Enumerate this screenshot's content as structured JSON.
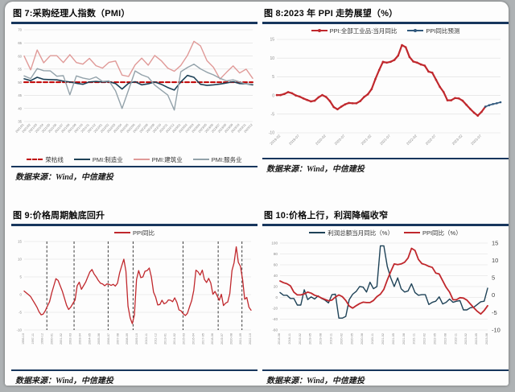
{
  "panels": [
    {
      "title": "图 7:采购经理人指数（PMI）",
      "source": "数据来源：Wind，中信建投"
    },
    {
      "title": "图 8:2023 年 PPI 走势展望（%）",
      "source": "数据来源：Wind，中信建投"
    },
    {
      "title": "图 9:价格周期触底回升",
      "source": "数据来源：Wind，中信建投"
    },
    {
      "title": "图 10:价格上行，利润降幅收窄",
      "source": "数据来源：Wind，中信建投"
    }
  ],
  "colors": {
    "rule_navy": "#17365d",
    "ppi_red": "#c0282d",
    "line_navy": "#1e4257",
    "construction_pink": "#e09a98",
    "services_gray": "#93a2aa",
    "forecast_blue": "#31597d",
    "grid": "#dddddd",
    "axis_text": "#8a8a8a"
  },
  "chart_data": [
    {
      "type": "line",
      "title": "图 7:采购经理人指数（PMI）",
      "xlabel": "",
      "ylabel": "",
      "ylim": [
        35,
        70
      ],
      "yticks": [
        70,
        65,
        60,
        55,
        50,
        45,
        40,
        35
      ],
      "y_font": 4.2,
      "x_font": 3.8,
      "x_rotate": -48,
      "grid": true,
      "legend_position": "bottom",
      "x_labels": [
        "2021/01",
        "2021/02",
        "2021/03",
        "2021/04",
        "2021/05",
        "2021/06",
        "2021/07",
        "2021/08",
        "2021/09",
        "2021/10",
        "2021/11",
        "2021/12",
        "2022/01",
        "2022/02",
        "2022/03",
        "2022/04",
        "2022/05",
        "2022/06",
        "2022/07",
        "2022/08",
        "2022/09",
        "2022/10",
        "2022/11",
        "2022/12",
        "2023/01",
        "2023/02",
        "2023/03",
        "2023/04",
        "2023/05",
        "2023/06",
        "2023/07",
        "2023/08",
        "2023/09",
        "2023/10",
        "2023/11",
        "2023/12"
      ],
      "series": [
        {
          "name": "荣枯线",
          "color": "#c00000",
          "width": 2,
          "dash": "5 3",
          "values": [
            50,
            50,
            50,
            50,
            50,
            50,
            50,
            50,
            50,
            50,
            50,
            50,
            50,
            50,
            50,
            50,
            50,
            50,
            50,
            50,
            50,
            50,
            50,
            50,
            50,
            50,
            50,
            50,
            50,
            50,
            50,
            50,
            50,
            50,
            50,
            50
          ]
        },
        {
          "name": "PMI:制造业",
          "color": "#1e4257",
          "width": 1.6,
          "values": [
            51.3,
            50.6,
            51.9,
            51.1,
            51.0,
            50.9,
            50.4,
            50.1,
            49.6,
            49.2,
            50.1,
            50.3,
            50.1,
            50.2,
            49.5,
            47.4,
            49.6,
            50.2,
            49.0,
            49.4,
            50.1,
            49.2,
            48.0,
            47.0,
            50.1,
            52.6,
            51.9,
            49.2,
            48.8,
            49.0,
            49.3,
            49.7,
            50.2,
            49.5,
            49.4,
            49.0
          ]
        },
        {
          "name": "PMI:建筑业",
          "color": "#e09a98",
          "width": 1.4,
          "values": [
            60.0,
            54.7,
            62.3,
            57.4,
            60.1,
            60.1,
            57.5,
            60.5,
            57.5,
            56.9,
            59.1,
            56.3,
            55.4,
            57.6,
            58.1,
            52.7,
            52.2,
            56.6,
            59.2,
            56.5,
            60.2,
            58.2,
            55.4,
            54.2,
            56.4,
            60.2,
            65.6,
            63.9,
            58.2,
            55.7,
            51.2,
            53.8,
            56.2,
            53.5,
            55.0,
            51.5
          ]
        },
        {
          "name": "PMI:服务业",
          "color": "#93a2aa",
          "width": 1.4,
          "values": [
            52.4,
            51.4,
            55.2,
            54.4,
            54.3,
            52.3,
            52.5,
            45.2,
            52.4,
            51.6,
            51.1,
            52.0,
            50.3,
            50.5,
            46.7,
            40.0,
            47.1,
            54.3,
            52.8,
            51.9,
            48.9,
            47.0,
            45.1,
            39.4,
            54.0,
            55.6,
            56.9,
            55.1,
            53.8,
            52.8,
            51.5,
            50.5,
            50.9,
            50.1,
            49.3,
            49.3
          ]
        }
      ]
    },
    {
      "type": "line",
      "title": "图 8:2023 年 PPI 走势展望（%）",
      "xlabel": "",
      "ylabel": "",
      "ylim": [
        -10,
        15
      ],
      "yticks": [
        15,
        10,
        5,
        0,
        -5,
        -10
      ],
      "y_font": 5,
      "x_font": 4.4,
      "x_rotate": -45,
      "grid": true,
      "legend_position": "top",
      "x_count": 60,
      "x_ticks": [
        {
          "i": 1,
          "label": "2019-02"
        },
        {
          "i": 6,
          "label": "2019-07"
        },
        {
          "i": 13,
          "label": "2020-02"
        },
        {
          "i": 18,
          "label": "2020-07"
        },
        {
          "i": 25,
          "label": "2021-02"
        },
        {
          "i": 30,
          "label": "2021-07"
        },
        {
          "i": 37,
          "label": "2022-02"
        },
        {
          "i": 42,
          "label": "2022-07"
        },
        {
          "i": 49,
          "label": "2023-02"
        },
        {
          "i": 54,
          "label": "2023-07"
        }
      ],
      "series": [
        {
          "name": "PPI:全部工业品:当月同比",
          "color": "#c0282d",
          "width": 2.2,
          "markers": true,
          "values": [
            0.1,
            0.1,
            0.4,
            0.9,
            0.6,
            0.0,
            -0.3,
            -0.8,
            -1.2,
            -1.6,
            -1.4,
            -0.5,
            0.1,
            -0.4,
            -1.5,
            -3.1,
            -3.7,
            -3.0,
            -2.4,
            -2.0,
            -2.1,
            -2.1,
            -1.5,
            -0.4,
            0.3,
            1.7,
            4.4,
            6.8,
            9.0,
            8.8,
            9.0,
            9.5,
            10.7,
            13.5,
            12.9,
            10.3,
            9.1,
            8.8,
            8.3,
            8.0,
            6.4,
            6.1,
            4.2,
            2.3,
            0.9,
            -1.3,
            -1.3,
            -0.7,
            -0.8,
            -1.4,
            -2.5,
            -3.6,
            -4.6,
            -5.4,
            -4.4,
            -3.0
          ]
        },
        {
          "name": "PPI同比预测",
          "color": "#31597d",
          "width": 1.6,
          "markers": true,
          "start": 55,
          "values": [
            -3.0,
            -2.6,
            -2.3,
            -2.1,
            -1.8
          ]
        }
      ]
    },
    {
      "type": "line",
      "title": "图 9:价格周期触底回升",
      "xlabel": "",
      "ylabel": "",
      "ylim": [
        -10,
        15
      ],
      "yticks": [
        15,
        10,
        5,
        0,
        -5,
        -10
      ],
      "y_font": 4.4,
      "x_font": 3.8,
      "x_rotate": -90,
      "grid": true,
      "legend_position": "top",
      "x_count": 108,
      "vlines": [
        0.1,
        0.22,
        0.37,
        0.48,
        0.7,
        0.855,
        0.96
      ],
      "x_ticks": [
        {
          "f": 0.0,
          "label": "1996-10"
        },
        {
          "f": 0.042,
          "label": "1997-11"
        },
        {
          "f": 0.083,
          "label": "1998-12"
        },
        {
          "f": 0.125,
          "label": "2000-01"
        },
        {
          "f": 0.167,
          "label": "2001-02"
        },
        {
          "f": 0.208,
          "label": "2002-03"
        },
        {
          "f": 0.25,
          "label": "2003-04"
        },
        {
          "f": 0.292,
          "label": "2004-05"
        },
        {
          "f": 0.333,
          "label": "2005-06"
        },
        {
          "f": 0.375,
          "label": "2006-07"
        },
        {
          "f": 0.417,
          "label": "2007-08"
        },
        {
          "f": 0.458,
          "label": "2008-09"
        },
        {
          "f": 0.5,
          "label": "2009-10"
        },
        {
          "f": 0.542,
          "label": "2010-11"
        },
        {
          "f": 0.583,
          "label": "2011-12"
        },
        {
          "f": 0.625,
          "label": "2013-01"
        },
        {
          "f": 0.667,
          "label": "2014-02"
        },
        {
          "f": 0.708,
          "label": "2015-03"
        },
        {
          "f": 0.75,
          "label": "2016-04"
        },
        {
          "f": 0.792,
          "label": "2017-05"
        },
        {
          "f": 0.833,
          "label": "2018-06"
        },
        {
          "f": 0.875,
          "label": "2019-07"
        },
        {
          "f": 0.917,
          "label": "2020-08"
        },
        {
          "f": 0.958,
          "label": "2021-09"
        },
        {
          "f": 1.0,
          "label": "2022-10"
        }
      ],
      "series": [
        {
          "name": "PPI同比",
          "color": "#c0282d",
          "width": 1.3,
          "values": [
            1.0,
            0.5,
            0.0,
            -0.5,
            -1.5,
            -2.5,
            -3.5,
            -4.8,
            -5.7,
            -5.5,
            -4.5,
            -3.2,
            -2.0,
            0.5,
            2.5,
            4.5,
            4.0,
            2.5,
            1.0,
            -1.0,
            -3.0,
            -4.2,
            -3.5,
            -2.5,
            -1.5,
            2.5,
            3.5,
            1.5,
            2.5,
            3.5,
            5.0,
            6.4,
            7.1,
            5.8,
            5.0,
            4.0,
            3.2,
            3.0,
            2.5,
            3.0,
            2.9,
            2.6,
            2.9,
            2.4,
            3.2,
            6.1,
            8.1,
            10.0,
            6.6,
            -3.3,
            -6.6,
            -8.2,
            -5.8,
            4.3,
            6.8,
            4.8,
            5.0,
            6.6,
            6.8,
            7.5,
            5.0,
            0.7,
            -0.7,
            -2.9,
            -2.8,
            -1.6,
            -2.6,
            -2.3,
            -1.5,
            -1.6,
            -2.0,
            -0.9,
            -2.2,
            -4.3,
            -4.6,
            -5.4,
            -5.9,
            -5.3,
            -3.4,
            -1.7,
            1.2,
            6.9,
            6.4,
            5.5,
            6.9,
            4.3,
            3.4,
            4.6,
            3.3,
            0.1,
            0.9,
            -0.3,
            -1.6,
            0.1,
            -3.1,
            -2.4,
            -2.1,
            0.3,
            6.8,
            9.0,
            13.5,
            9.1,
            8.0,
            4.2,
            -1.3,
            -0.8,
            -3.6,
            -4.4
          ]
        }
      ]
    },
    {
      "type": "line",
      "title": "图 10:价格上行，利润降幅收窄",
      "xlabel": "",
      "ylabel": "",
      "ylim": [
        -60,
        100
      ],
      "yticks": [
        100,
        80,
        60,
        40,
        20,
        0,
        -20,
        -40,
        -60
      ],
      "y2lim": [
        -10,
        15
      ],
      "y2ticks": [
        15,
        10,
        5,
        0,
        -5,
        -10
      ],
      "y_font": 4.6,
      "y2_font": 7.5,
      "x_font": 3.8,
      "x_rotate": -90,
      "grid": true,
      "legend_position": "top",
      "x_count": 61,
      "x_ticks": [
        {
          "i": 0,
          "label": "2018-08"
        },
        {
          "i": 3,
          "label": "2018-11"
        },
        {
          "i": 6,
          "label": "2019-02"
        },
        {
          "i": 9,
          "label": "2019-05"
        },
        {
          "i": 12,
          "label": "2019-08"
        },
        {
          "i": 15,
          "label": "2019-11"
        },
        {
          "i": 18,
          "label": "2020-02"
        },
        {
          "i": 21,
          "label": "2020-05"
        },
        {
          "i": 24,
          "label": "2020-08"
        },
        {
          "i": 27,
          "label": "2020-11"
        },
        {
          "i": 30,
          "label": "2021-02"
        },
        {
          "i": 33,
          "label": "2021-05"
        },
        {
          "i": 36,
          "label": "2021-08"
        },
        {
          "i": 39,
          "label": "2021-11"
        },
        {
          "i": 42,
          "label": "2022-02"
        },
        {
          "i": 45,
          "label": "2022-05"
        },
        {
          "i": 48,
          "label": "2022-08"
        },
        {
          "i": 51,
          "label": "2022-11"
        },
        {
          "i": 54,
          "label": "2023-02"
        },
        {
          "i": 57,
          "label": "2023-05"
        },
        {
          "i": 60,
          "label": "2023-08"
        }
      ],
      "series": [
        {
          "name": "利润总额当月同比（%）",
          "color": "#1e4257",
          "width": 1.4,
          "axis": "left",
          "values": [
            9,
            4,
            4,
            -2,
            -2,
            -14,
            -14,
            14,
            -4,
            1,
            -3,
            3,
            -2,
            -5,
            -10,
            5,
            6,
            -38,
            -38,
            -35,
            -4,
            6,
            11,
            20,
            19,
            10,
            28,
            16,
            20,
            95,
            95,
            57,
            36,
            20,
            36,
            16,
            10,
            12,
            25,
            9,
            4,
            5,
            5,
            -13,
            -9,
            -7,
            1,
            -12,
            -9,
            -3,
            -9,
            -7,
            -6,
            -23,
            -23,
            -19,
            -18,
            -13,
            -8,
            -7,
            17
          ]
        },
        {
          "name": "PPI同比（%）",
          "color": "#c0282d",
          "width": 1.8,
          "axis": "right",
          "values": [
            4.1,
            3.6,
            3.3,
            2.7,
            0.9,
            0.1,
            0.1,
            0.4,
            0.9,
            0.6,
            0.0,
            -0.3,
            -0.8,
            -1.2,
            -1.6,
            -1.4,
            -0.5,
            0.1,
            -0.4,
            -1.5,
            -3.1,
            -3.7,
            -3.0,
            -2.4,
            -2.0,
            -2.1,
            -2.1,
            -1.5,
            -0.4,
            0.3,
            1.7,
            4.4,
            6.8,
            9.0,
            8.8,
            9.0,
            9.5,
            10.7,
            13.5,
            12.9,
            10.3,
            9.1,
            8.8,
            8.3,
            8.0,
            6.4,
            6.1,
            4.2,
            2.3,
            0.9,
            -1.3,
            -1.3,
            -0.7,
            -0.8,
            -1.4,
            -2.5,
            -3.6,
            -4.6,
            -5.4,
            -4.4,
            -3.0
          ]
        }
      ]
    }
  ]
}
